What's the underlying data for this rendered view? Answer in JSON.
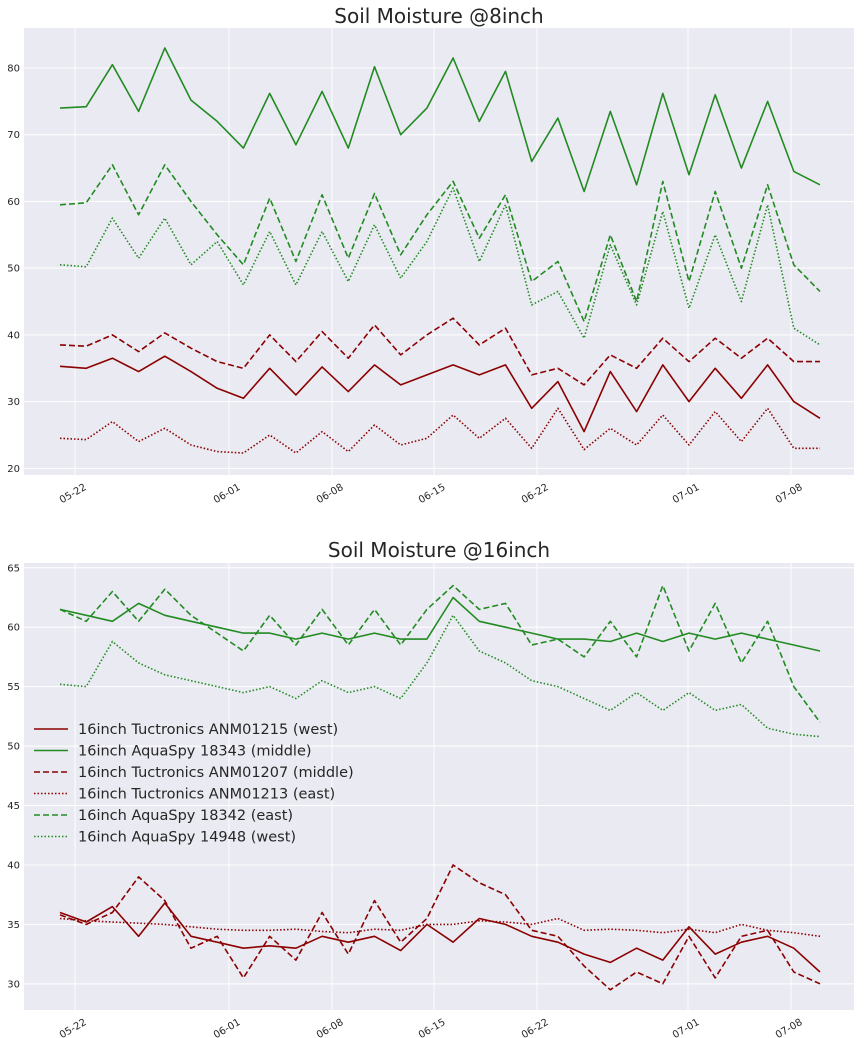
{
  "chart_data": [
    {
      "type": "line",
      "title": "Soil Moisture @8inch",
      "xlabel": "",
      "ylabel": "",
      "x_tick_labels": [
        "05-22",
        "06-01",
        "06-08",
        "06-15",
        "06-22",
        "07-01",
        "07-08"
      ],
      "y_tick_labels": [
        "20",
        "30",
        "40",
        "50",
        "60",
        "70",
        "80"
      ],
      "ylim": [
        19,
        86
      ],
      "grid": true,
      "series": [
        {
          "color": "#228b22",
          "dash": "solid",
          "values": [
            74.0,
            74.2,
            80.5,
            73.5,
            83.0,
            75.2,
            72.0,
            68.0,
            76.2,
            68.5,
            76.5,
            68.0,
            80.2,
            70.0,
            74.0,
            81.5,
            72.0,
            79.5,
            66.0,
            72.5,
            61.5,
            73.5,
            62.5,
            76.2,
            64.0,
            76.0,
            65.0,
            75.0,
            64.5,
            62.5
          ]
        },
        {
          "color": "#228b22",
          "dash": "dashed",
          "values": [
            59.5,
            59.8,
            65.5,
            58.0,
            65.5,
            60.0,
            55.0,
            50.5,
            60.5,
            51.0,
            61.0,
            51.5,
            61.2,
            52.0,
            58.0,
            63.0,
            54.5,
            61.0,
            48.0,
            51.0,
            42.0,
            55.0,
            45.0,
            63.0,
            48.0,
            61.5,
            50.0,
            62.5,
            50.5,
            46.5
          ]
        },
        {
          "color": "#228b22",
          "dash": "dotted",
          "values": [
            50.5,
            50.2,
            57.5,
            51.5,
            57.5,
            50.5,
            54.0,
            47.5,
            55.5,
            47.5,
            55.5,
            48.0,
            56.5,
            48.5,
            54.0,
            62.0,
            51.0,
            59.5,
            44.5,
            46.5,
            39.5,
            53.5,
            44.5,
            58.5,
            44.0,
            55.0,
            45.0,
            59.5,
            41.0,
            38.5
          ]
        },
        {
          "color": "#8b0000",
          "dash": "solid",
          "values": [
            35.3,
            35.0,
            36.5,
            34.5,
            36.8,
            34.5,
            32.0,
            30.5,
            35.0,
            31.0,
            35.2,
            31.5,
            35.5,
            32.5,
            34.0,
            35.5,
            34.0,
            35.5,
            29.0,
            33.0,
            25.5,
            34.5,
            28.5,
            35.5,
            30.0,
            35.0,
            30.5,
            35.5,
            30.0,
            27.5
          ]
        },
        {
          "color": "#8b0000",
          "dash": "dashed",
          "values": [
            38.5,
            38.3,
            40.0,
            37.5,
            40.3,
            38.0,
            36.0,
            35.0,
            40.0,
            36.0,
            40.5,
            36.5,
            41.5,
            37.0,
            40.0,
            42.5,
            38.5,
            41.0,
            34.0,
            35.0,
            32.5,
            37.0,
            35.0,
            39.5,
            36.0,
            39.5,
            36.5,
            39.5,
            36.0,
            36.0
          ]
        },
        {
          "color": "#8b0000",
          "dash": "dotted",
          "values": [
            24.5,
            24.3,
            27.0,
            24.0,
            26.0,
            23.5,
            22.5,
            22.3,
            25.0,
            22.3,
            25.5,
            22.5,
            26.5,
            23.5,
            24.5,
            28.0,
            24.5,
            27.5,
            23.0,
            29.0,
            22.8,
            26.0,
            23.5,
            28.0,
            23.5,
            28.5,
            24.0,
            29.0,
            23.0,
            23.0
          ]
        }
      ]
    },
    {
      "type": "line",
      "title": "Soil Moisture @16inch",
      "xlabel": "",
      "ylabel": "",
      "x_tick_labels": [
        "05-22",
        "06-01",
        "06-08",
        "06-15",
        "06-22",
        "07-01",
        "07-08"
      ],
      "y_tick_labels": [
        "30",
        "35",
        "40",
        "45",
        "50",
        "55",
        "60",
        "65"
      ],
      "ylim": [
        27.8,
        65.4
      ],
      "grid": true,
      "legend": "center-left",
      "series": [
        {
          "name": "16inch Tuctronics ANM01215 (west)",
          "color": "#8b0000",
          "dash": "solid",
          "values": [
            36.0,
            35.2,
            36.5,
            34.0,
            36.8,
            34.0,
            33.5,
            33.0,
            33.2,
            33.0,
            34.0,
            33.5,
            34.0,
            32.8,
            35.0,
            33.5,
            35.5,
            35.0,
            34.0,
            33.5,
            32.5,
            31.8,
            33.0,
            32.0,
            34.8,
            32.5,
            33.5,
            34.0,
            33.0,
            31.0
          ]
        },
        {
          "name": "16inch AquaSpy 18343 (middle)",
          "color": "#228b22",
          "dash": "solid",
          "values": [
            61.5,
            61.0,
            60.5,
            62.0,
            61.0,
            60.5,
            60.0,
            59.5,
            59.5,
            59.0,
            59.5,
            59.0,
            59.5,
            59.0,
            59.0,
            62.5,
            60.5,
            60.0,
            59.5,
            59.0,
            59.0,
            58.8,
            59.5,
            58.8,
            59.5,
            59.0,
            59.5,
            59.0,
            58.5,
            58.0
          ]
        },
        {
          "name": "16inch Tuctronics ANM01207 (middle)",
          "color": "#8b0000",
          "dash": "dashed",
          "values": [
            35.8,
            35.0,
            36.0,
            39.0,
            37.0,
            33.0,
            34.0,
            30.5,
            34.0,
            32.0,
            36.0,
            32.5,
            37.0,
            33.5,
            35.5,
            40.0,
            38.5,
            37.5,
            34.5,
            34.0,
            31.5,
            29.5,
            31.0,
            30.0,
            34.0,
            30.5,
            34.0,
            34.5,
            31.0,
            30.0
          ]
        },
        {
          "name": "16inch Tuctronics ANM01213 (east)",
          "color": "#8b0000",
          "dash": "dotted",
          "values": [
            35.5,
            35.3,
            35.2,
            35.1,
            35.0,
            34.8,
            34.6,
            34.5,
            34.5,
            34.6,
            34.4,
            34.3,
            34.6,
            34.5,
            35.0,
            35.0,
            35.3,
            35.2,
            35.0,
            35.5,
            34.5,
            34.6,
            34.5,
            34.3,
            34.6,
            34.3,
            35.0,
            34.5,
            34.3,
            34.0
          ]
        },
        {
          "name": "16inch AquaSpy 18342 (east)",
          "color": "#228b22",
          "dash": "dashed",
          "values": [
            61.5,
            60.5,
            63.0,
            60.5,
            63.2,
            61.0,
            59.5,
            58.0,
            61.0,
            58.5,
            61.5,
            58.5,
            61.5,
            58.5,
            61.5,
            63.5,
            61.5,
            62.0,
            58.5,
            59.0,
            57.5,
            60.5,
            57.5,
            63.5,
            58.0,
            62.0,
            57.0,
            60.5,
            55.0,
            52.0
          ]
        },
        {
          "name": "16inch AquaSpy 14948 (west)",
          "color": "#228b22",
          "dash": "dotted",
          "values": [
            55.2,
            55.0,
            58.8,
            57.0,
            56.0,
            55.5,
            55.0,
            54.5,
            55.0,
            54.0,
            55.5,
            54.5,
            55.0,
            54.0,
            57.0,
            61.0,
            58.0,
            57.0,
            55.5,
            55.0,
            54.0,
            53.0,
            54.5,
            53.0,
            54.5,
            53.0,
            53.5,
            51.5,
            51.0,
            50.8
          ]
        }
      ]
    }
  ]
}
